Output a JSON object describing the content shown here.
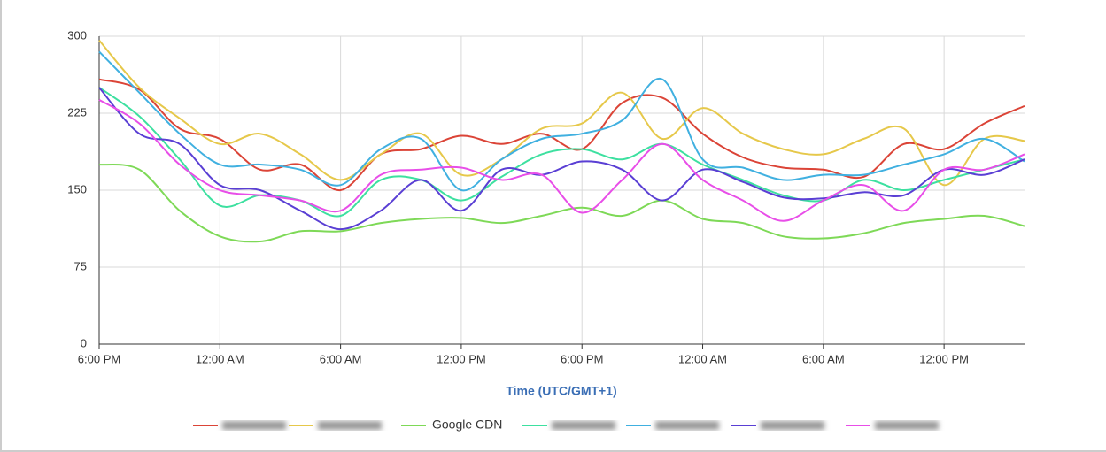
{
  "chart_data": {
    "type": "line",
    "x_label": "Time (UTC/GMT+1)",
    "x": [
      0,
      2,
      4,
      6,
      8,
      10,
      12,
      14,
      16,
      18,
      20,
      22,
      24,
      26,
      28,
      30,
      32,
      34,
      36,
      38,
      40,
      42,
      44,
      46
    ],
    "xlim": [
      0,
      46
    ],
    "xticks": [
      {
        "value": 0,
        "label": "6:00 PM"
      },
      {
        "value": 6,
        "label": "12:00 AM"
      },
      {
        "value": 12,
        "label": "6:00 AM"
      },
      {
        "value": 18,
        "label": "12:00 PM"
      },
      {
        "value": 24,
        "label": "6:00 PM"
      },
      {
        "value": 30,
        "label": "12:00 AM"
      },
      {
        "value": 36,
        "label": "6:00 AM"
      },
      {
        "value": 42,
        "label": "12:00 PM"
      }
    ],
    "ylim": [
      0,
      300
    ],
    "yticks": [
      0,
      75,
      150,
      225,
      300
    ],
    "grid": true,
    "legend": "bottom",
    "series": [
      {
        "color": "#db4437",
        "values": [
          258,
          248,
          210,
          200,
          170,
          175,
          150,
          185,
          190,
          203,
          195,
          205,
          190,
          235,
          240,
          205,
          182,
          172,
          170,
          163,
          195,
          190,
          215,
          232
        ]
      },
      {
        "color": "#e6c84a",
        "values": [
          296,
          250,
          220,
          195,
          205,
          185,
          160,
          185,
          205,
          165,
          180,
          210,
          215,
          245,
          200,
          230,
          205,
          190,
          185,
          200,
          210,
          155,
          200,
          198
        ]
      },
      {
        "name": "Google CDN",
        "color": "#7ed957",
        "values": [
          175,
          170,
          130,
          105,
          100,
          110,
          110,
          118,
          122,
          123,
          118,
          125,
          133,
          125,
          140,
          122,
          118,
          105,
          103,
          108,
          118,
          122,
          125,
          115
        ]
      },
      {
        "color": "#3de0a0",
        "values": [
          250,
          222,
          180,
          135,
          145,
          140,
          125,
          160,
          160,
          140,
          163,
          185,
          190,
          180,
          195,
          175,
          160,
          145,
          140,
          160,
          150,
          160,
          170,
          180
        ]
      },
      {
        "color": "#40b0e0",
        "values": [
          285,
          245,
          205,
          175,
          175,
          170,
          155,
          190,
          200,
          150,
          180,
          200,
          205,
          218,
          258,
          180,
          172,
          160,
          165,
          165,
          175,
          185,
          200,
          178
        ]
      },
      {
        "color": "#5a3fd4",
        "values": [
          250,
          205,
          195,
          155,
          150,
          130,
          112,
          130,
          160,
          130,
          170,
          165,
          178,
          170,
          140,
          170,
          158,
          143,
          142,
          148,
          145,
          170,
          165,
          180
        ]
      },
      {
        "color": "#e84ee8",
        "values": [
          238,
          215,
          175,
          150,
          145,
          140,
          130,
          165,
          170,
          172,
          160,
          165,
          128,
          160,
          195,
          160,
          140,
          120,
          140,
          155,
          130,
          170,
          170,
          185
        ]
      }
    ]
  }
}
